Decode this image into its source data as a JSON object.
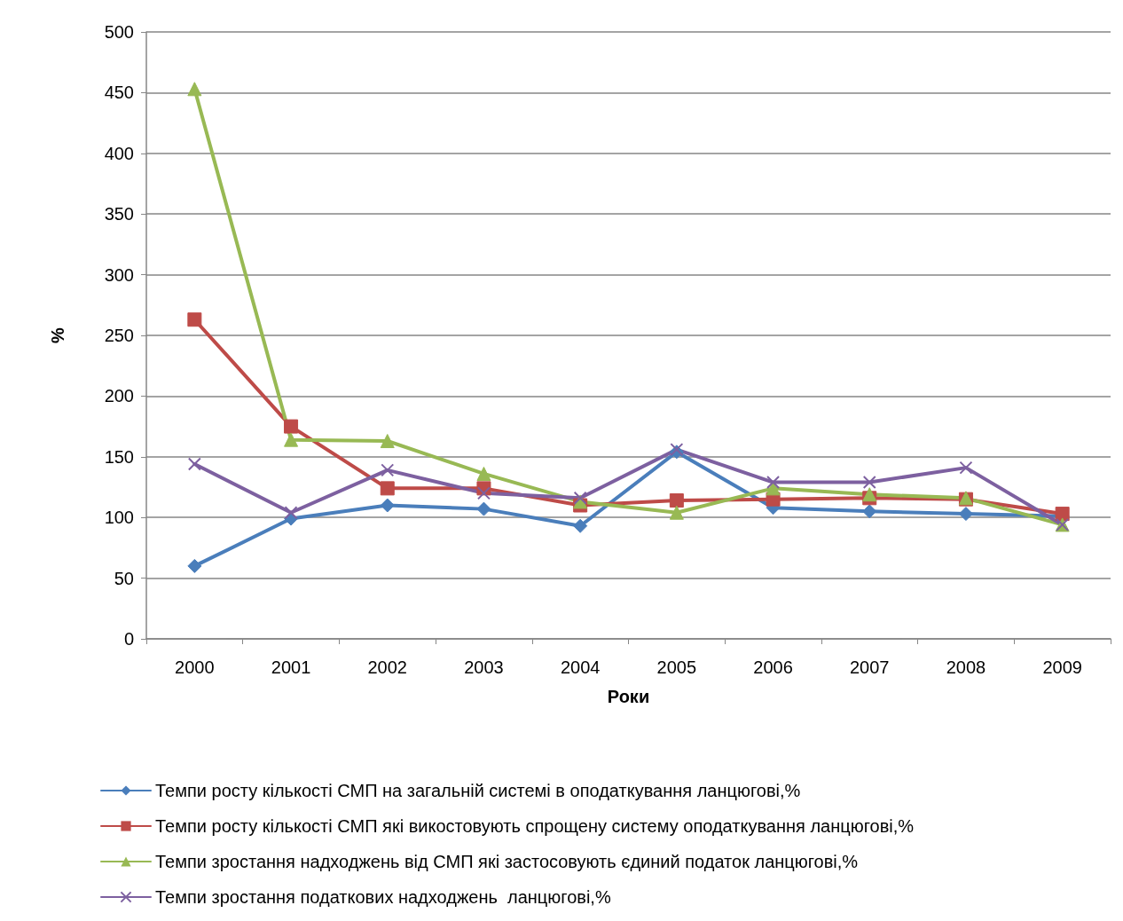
{
  "chart_data": {
    "type": "line",
    "xlabel": "Роки",
    "ylabel": "%",
    "categories": [
      "2000",
      "2001",
      "2002",
      "2003",
      "2004",
      "2005",
      "2006",
      "2007",
      "2008",
      "2009"
    ],
    "ylim": [
      0,
      500
    ],
    "yticks": [
      0,
      50,
      100,
      150,
      200,
      250,
      300,
      350,
      400,
      450,
      500
    ],
    "grid": "y",
    "legend": "bottom",
    "line_style": "solid",
    "series": [
      {
        "name": "Темпи росту кількості СМП на загальній системі в оподаткування ланцюгові,%",
        "color": "#4a7ebb",
        "marker": "diamond",
        "values": [
          60,
          99,
          110,
          107,
          93,
          154,
          108,
          105,
          103,
          101
        ]
      },
      {
        "name": "Темпи росту кількості СМП які викостовують спрощену систему оподаткування ланцюгові,%",
        "color": "#be4b48",
        "marker": "square",
        "values": [
          263,
          175,
          124,
          124,
          110,
          114,
          115,
          116,
          115,
          103
        ]
      },
      {
        "name": "Темпи зростання надходжень від СМП які застосовують єдиний податок ланцюгові,%",
        "color": "#98b954",
        "marker": "triangle",
        "values": [
          453,
          164,
          163,
          136,
          113,
          104,
          124,
          119,
          116,
          94
        ]
      },
      {
        "name": "Темпи зростання податкових надходжень  ланцюгові,%",
        "color": "#7d60a0",
        "marker": "cross",
        "values": [
          144,
          104,
          139,
          120,
          116,
          156,
          129,
          129,
          141,
          94
        ]
      }
    ]
  }
}
